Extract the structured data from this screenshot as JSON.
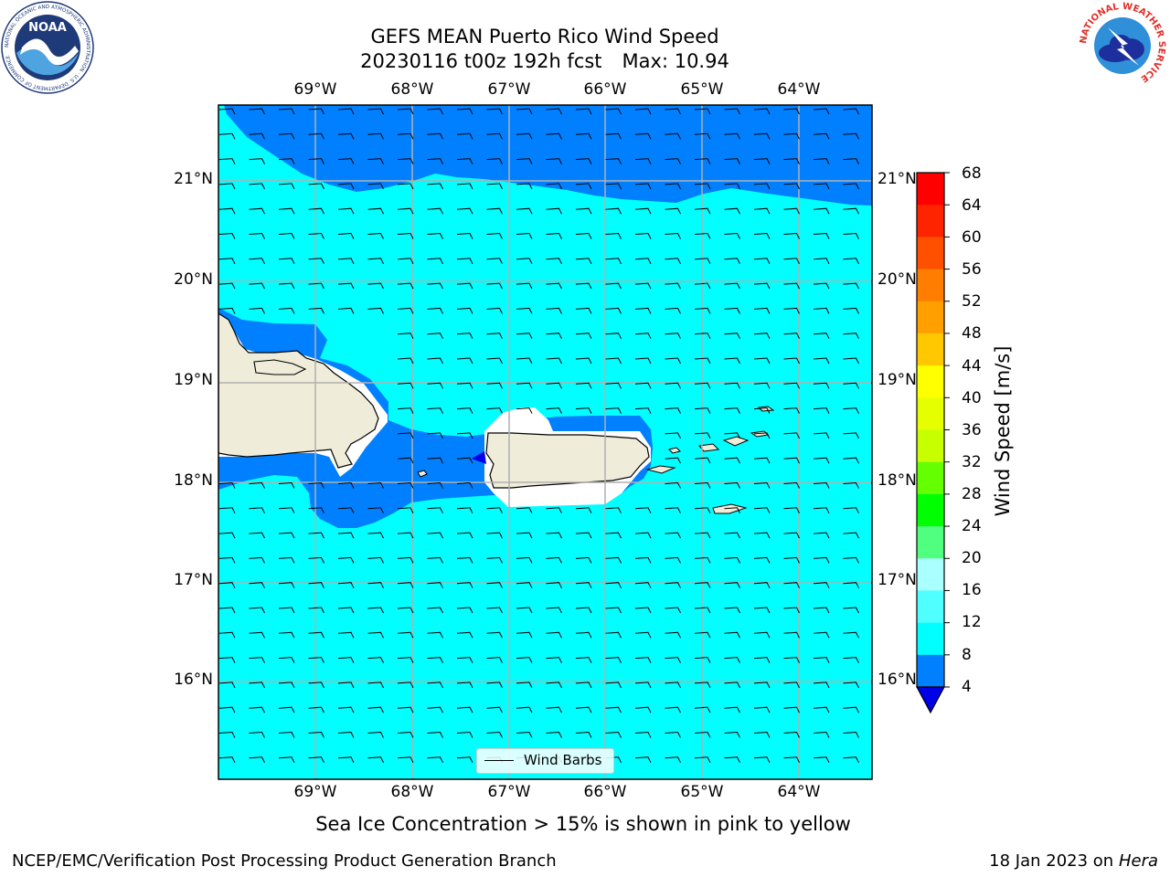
{
  "title": {
    "line1": "GEFS MEAN Puerto Rico Wind Speed",
    "line2_run": "20230116 t00z 192h fcst",
    "line2_max": "Max: 10.94"
  },
  "map": {
    "lon_ticks": [
      "69°W",
      "68°W",
      "67°W",
      "66°W",
      "65°W",
      "64°W"
    ],
    "lat_ticks": [
      "21°N",
      "20°N",
      "19°N",
      "18°N",
      "17°N",
      "16°N"
    ],
    "colors": {
      "ocean_dark": "#0080ff",
      "ocean_light": "#00ffff",
      "land": "#efecda",
      "masked_coast": "#ffffff",
      "min_band": "#0000e6",
      "gridline": "#b0b0b0"
    },
    "wind_barbs_legend": "Wind Barbs"
  },
  "colorbar": {
    "label": "Wind Speed [m/s]",
    "ticks": [
      "68",
      "64",
      "60",
      "56",
      "52",
      "48",
      "44",
      "40",
      "36",
      "32",
      "28",
      "24",
      "20",
      "16",
      "12",
      "8",
      "4"
    ],
    "colors": [
      "#ff0000",
      "#ff2400",
      "#ff5000",
      "#ff7d00",
      "#ffa000",
      "#ffc800",
      "#ffff00",
      "#f0ff00",
      "#e1ff00",
      "#c8ff00",
      "#a0ff00",
      "#50ff00",
      "#00ff00",
      "#00e600",
      "#50ff80",
      "#aaffff",
      "#50ffff",
      "#00ffff",
      "#0080ff"
    ],
    "below_min_color": "#0000e6"
  },
  "note": "Sea Ice Concentration > 15% is shown in pink to yellow",
  "footer": {
    "left": "NCEP/EMC/Verification Post Processing Product Generation Branch",
    "right_date": "18 Jan 2023 on ",
    "right_machine": "Hera"
  },
  "logos": {
    "noaa_text": "NOAA",
    "noaa_ring": "NATIONAL OCEANIC AND ATMOSPHERIC ADMINISTRATION · U.S. DEPARTMENT OF COMMERCE",
    "nws_ring": "NATIONAL WEATHER SERVICE"
  }
}
